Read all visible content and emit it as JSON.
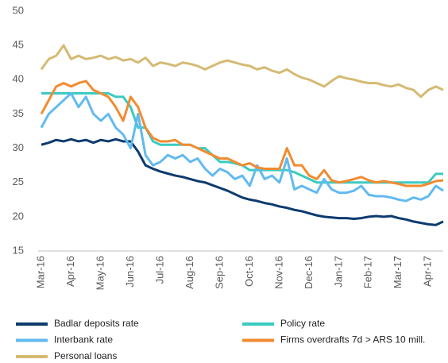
{
  "chart_data": {
    "type": "line",
    "categories": [
      "Mar-16",
      null,
      null,
      null,
      "Apr-16",
      null,
      null,
      null,
      "May-16",
      null,
      null,
      null,
      "Jun-16",
      null,
      null,
      null,
      "Jul-16",
      null,
      null,
      null,
      "Aug-16",
      null,
      null,
      null,
      "Sep-16",
      null,
      null,
      null,
      "Oct-16",
      null,
      null,
      null,
      "Nov-16",
      null,
      null,
      null,
      "Dec-16",
      null,
      null,
      null,
      "Jan-17",
      null,
      null,
      null,
      "Feb-17",
      null,
      null,
      null,
      "Mar-17",
      null,
      null,
      null,
      "Apr-17",
      null,
      null
    ],
    "ylim": [
      15,
      50
    ],
    "yticks": [
      15,
      20,
      25,
      30,
      35,
      40,
      45,
      50
    ],
    "grid": false,
    "series": [
      {
        "name": "Badlar deposits rate",
        "color": "#0d3b6e",
        "values": [
          30.5,
          30.8,
          31.2,
          31.0,
          31.3,
          31.0,
          31.2,
          30.8,
          31.2,
          31.0,
          31.3,
          31.0,
          31.0,
          29.5,
          27.5,
          27.0,
          26.6,
          26.3,
          26.0,
          25.8,
          25.5,
          25.2,
          25.0,
          24.6,
          24.2,
          23.8,
          23.3,
          22.8,
          22.5,
          22.3,
          22.0,
          21.8,
          21.5,
          21.3,
          21.0,
          20.8,
          20.5,
          20.2,
          20.0,
          19.9,
          19.8,
          19.8,
          19.7,
          19.8,
          20.0,
          20.1,
          20.0,
          20.1,
          19.8,
          19.6,
          19.3,
          19.1,
          18.9,
          18.8,
          19.3
        ]
      },
      {
        "name": "Policy rate",
        "color": "#3ccac2",
        "values": [
          38,
          38,
          38,
          38,
          38,
          38,
          38,
          38,
          38,
          38,
          37.5,
          37.5,
          36,
          33,
          33,
          31,
          30.5,
          30.5,
          30.5,
          30.5,
          30.5,
          30,
          30,
          29,
          28,
          28,
          27.8,
          27.5,
          26.8,
          26.8,
          26.8,
          26.8,
          26.8,
          26.8,
          26.5,
          26,
          25.5,
          25,
          25,
          25,
          25,
          25,
          25,
          25,
          25,
          25,
          25,
          25,
          25,
          25,
          25,
          25,
          25,
          26.25,
          26.25
        ]
      },
      {
        "name": "Interbank rate",
        "color": "#62baef",
        "values": [
          33,
          35,
          36,
          37,
          38,
          36,
          37.5,
          35,
          34,
          35,
          33,
          32,
          30,
          35,
          29,
          27.5,
          28,
          29,
          28.5,
          29,
          28,
          28.5,
          27,
          26,
          27,
          26.5,
          25.5,
          26,
          24.5,
          27.5,
          25.5,
          26,
          25,
          28.5,
          24,
          24.5,
          24,
          23.5,
          25.5,
          24,
          23.5,
          23.5,
          23.8,
          24.5,
          23.2,
          23,
          23,
          22.8,
          22.5,
          22.3,
          22.8,
          22.5,
          23,
          24.5,
          23.8
        ]
      },
      {
        "name": "Firms overdrafts 7d > ARS 10 mill.",
        "color": "#f28b30",
        "values": [
          35,
          37,
          39,
          39.5,
          39,
          39.5,
          39.8,
          38.5,
          38,
          37.5,
          36,
          34,
          37.5,
          36,
          33,
          31.5,
          31,
          31,
          31.2,
          30.5,
          30.5,
          30,
          29.5,
          29,
          28.5,
          28.5,
          28,
          27.5,
          27.8,
          27.2,
          27,
          27,
          27,
          30,
          27.5,
          27.5,
          26,
          25.5,
          26.8,
          25.3,
          25,
          25.2,
          25.5,
          25.8,
          25.3,
          25,
          25.2,
          25,
          24.8,
          24.5,
          24.5,
          24.5,
          24.8,
          25.2,
          25.3
        ]
      },
      {
        "name": "Personal loans",
        "color": "#d5ba74",
        "values": [
          41.5,
          43,
          43.5,
          45,
          43,
          43.5,
          43,
          43.2,
          43.5,
          43,
          43.3,
          42.8,
          43,
          42.5,
          43.2,
          42,
          42.5,
          42.3,
          42,
          42.5,
          42.3,
          42,
          41.5,
          42,
          42.5,
          42.8,
          42.5,
          42.2,
          42,
          41.5,
          41.8,
          41.3,
          41,
          41.5,
          40.8,
          40.3,
          40,
          39.5,
          39,
          39.8,
          40.5,
          40.2,
          40,
          39.7,
          39.5,
          39.5,
          39.2,
          39,
          39.3,
          38.8,
          38.5,
          37.5,
          38.5,
          39,
          38.5
        ]
      }
    ]
  }
}
